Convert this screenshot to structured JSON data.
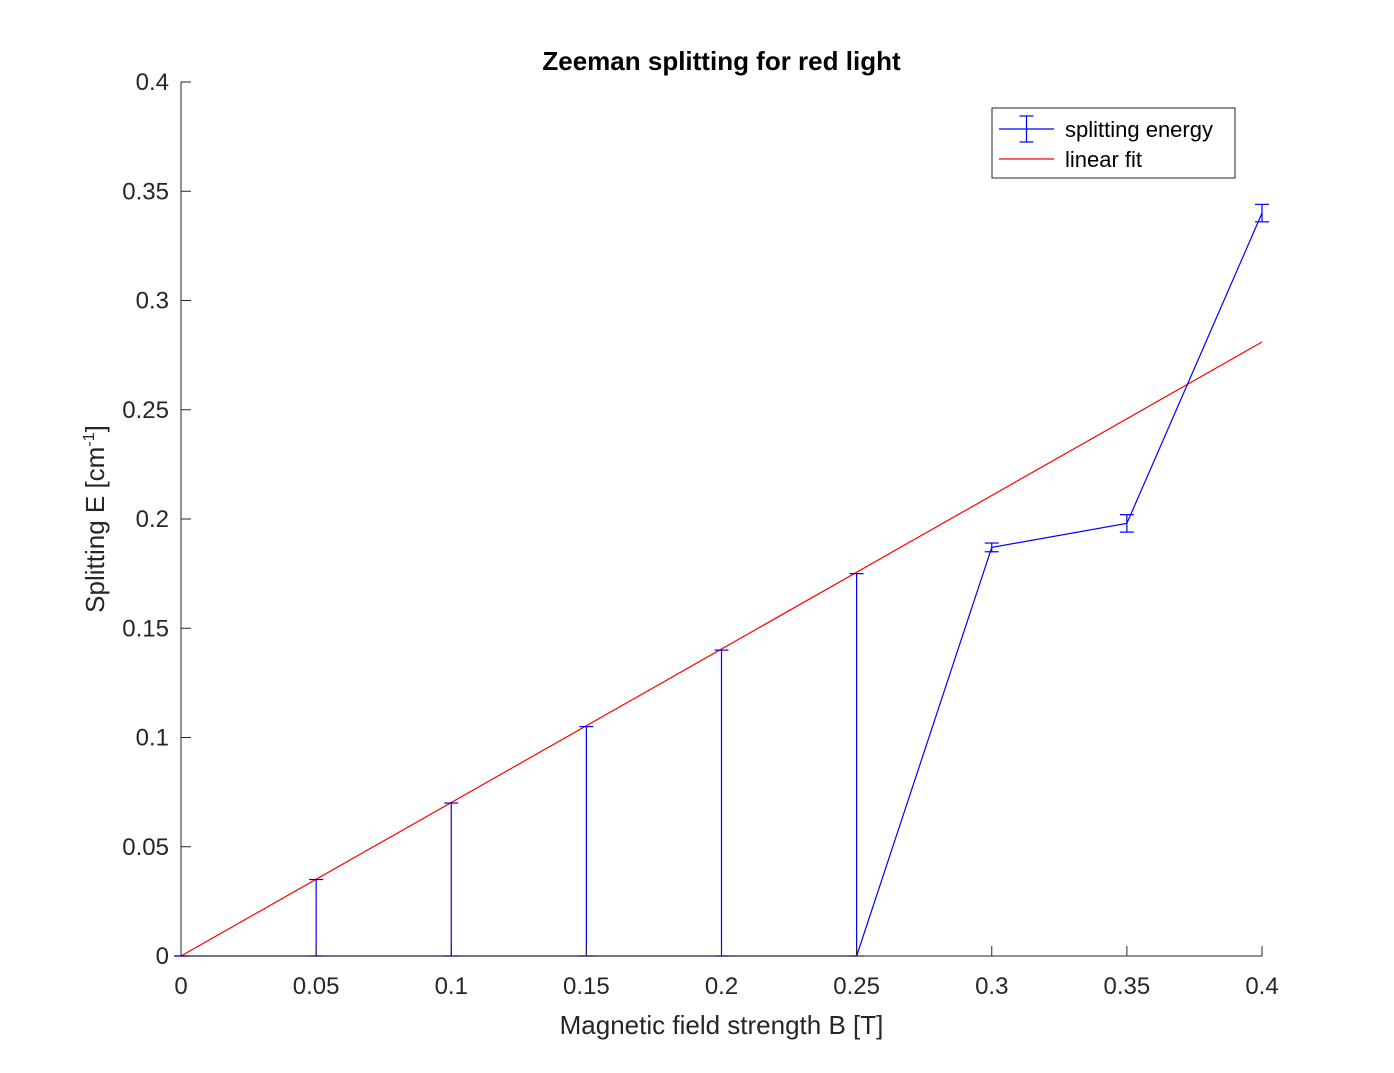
{
  "chart_data": {
    "type": "line",
    "title": "Zeeman splitting for red light",
    "xlabel": "Magnetic field strength B [T]",
    "ylabel": {
      "main": "Splitting E [cm",
      "superscript": "-1",
      "close": "]"
    },
    "xlim": [
      0,
      0.4
    ],
    "ylim": [
      0,
      0.4
    ],
    "x_ticks": [
      0,
      0.05,
      0.1,
      0.15,
      0.2,
      0.25,
      0.3,
      0.35,
      0.4
    ],
    "x_tick_labels": [
      "0",
      "0.05",
      "0.1",
      "0.15",
      "0.2",
      "0.25",
      "0.3",
      "0.35",
      "0.4"
    ],
    "y_ticks": [
      0,
      0.05,
      0.1,
      0.15,
      0.2,
      0.25,
      0.3,
      0.35,
      0.4
    ],
    "y_tick_labels": [
      "0",
      "0.05",
      "0.1",
      "0.15",
      "0.2",
      "0.25",
      "0.3",
      "0.35",
      "0.4"
    ],
    "grid": false,
    "legend_position": "top-right",
    "series": [
      {
        "name": "splitting energy",
        "kind": "errorbar",
        "color": "#0000ff",
        "x": [
          0,
          0.05,
          0.1,
          0.15,
          0.2,
          0.25,
          0.3,
          0.35,
          0.4
        ],
        "y": [
          0,
          0,
          0,
          0,
          0,
          0,
          0.187,
          0.198,
          0.34
        ],
        "err_low": [
          0,
          0,
          0,
          0,
          0,
          0,
          0.002,
          0.004,
          0.004
        ],
        "err_high": [
          0,
          0.035,
          0.07,
          0.105,
          0.14,
          0.175,
          0.002,
          0.004,
          0.004
        ]
      },
      {
        "name": "linear fit",
        "kind": "line",
        "color": "#ff0000",
        "x": [
          0,
          0.4
        ],
        "y": [
          0,
          0.281
        ]
      }
    ]
  }
}
